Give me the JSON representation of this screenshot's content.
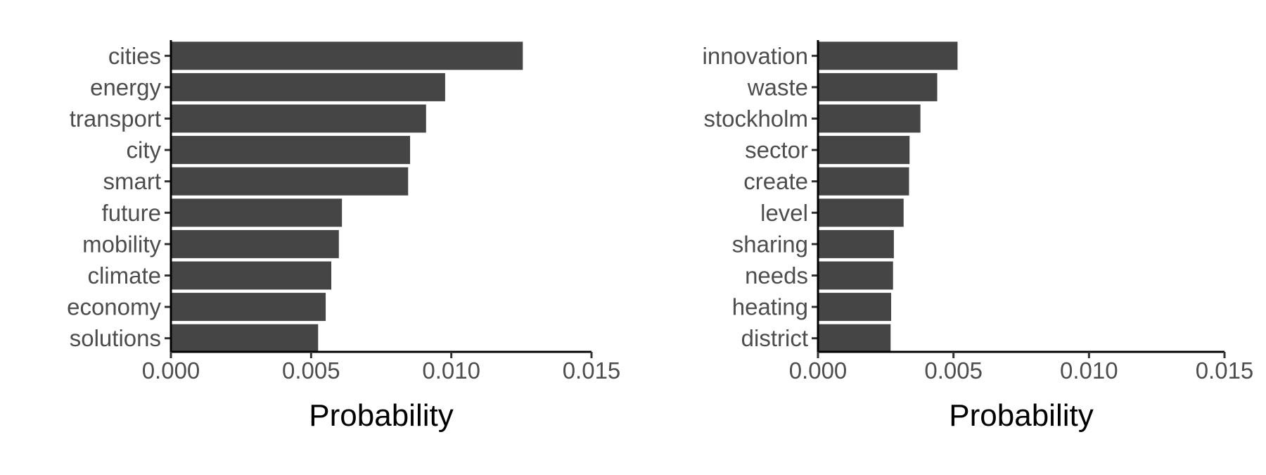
{
  "chart_data": [
    {
      "type": "bar",
      "orientation": "horizontal",
      "categories": [
        "cities",
        "energy",
        "transport",
        "city",
        "smart",
        "future",
        "mobility",
        "climate",
        "economy",
        "solutions"
      ],
      "values": [
        0.01255,
        0.00978,
        0.0091,
        0.00853,
        0.00846,
        0.0061,
        0.00599,
        0.00572,
        0.00552,
        0.00525
      ],
      "xlabel": "Probability",
      "xlim": [
        0,
        0.015
      ],
      "xticks": [
        "0.000",
        "0.005",
        "0.010",
        "0.015"
      ],
      "bar_color": "#454545",
      "grid": false
    },
    {
      "type": "bar",
      "orientation": "horizontal",
      "categories": [
        "innovation",
        "waste",
        "stockholm",
        "sector",
        "create",
        "level",
        "sharing",
        "needs",
        "heating",
        "district"
      ],
      "values": [
        0.00515,
        0.0044,
        0.00378,
        0.00338,
        0.00336,
        0.00316,
        0.0028,
        0.00277,
        0.0027,
        0.00268
      ],
      "xlabel": "Probability",
      "xlim": [
        0,
        0.015
      ],
      "xticks": [
        "0.000",
        "0.005",
        "0.010",
        "0.015"
      ],
      "bar_color": "#454545",
      "grid": false
    }
  ]
}
